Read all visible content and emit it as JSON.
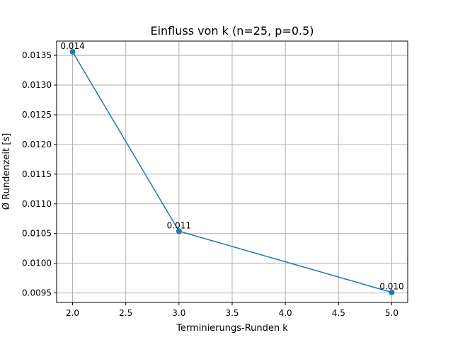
{
  "chart_data": {
    "type": "line",
    "title": "Einfluss von k (n=25, p=0.5)",
    "xlabel": "Terminierungs-Runden k",
    "ylabel": "Ø Rundenzeit [s]",
    "xlim": [
      1.85,
      5.15
    ],
    "ylim": [
      0.00934,
      0.01374
    ],
    "xticks": [
      2.0,
      2.5,
      3.0,
      3.5,
      4.0,
      4.5,
      5.0
    ],
    "xtick_labels": [
      "2.0",
      "2.5",
      "3.0",
      "3.5",
      "4.0",
      "4.5",
      "5.0"
    ],
    "yticks": [
      0.0095,
      0.01,
      0.0105,
      0.011,
      0.0115,
      0.012,
      0.0125,
      0.013,
      0.0135
    ],
    "ytick_labels": [
      "0.0095",
      "0.0100",
      "0.0105",
      "0.0110",
      "0.0115",
      "0.0120",
      "0.0125",
      "0.0130",
      "0.0135"
    ],
    "grid": true,
    "series": [
      {
        "color": "#1f77b4",
        "x": [
          2,
          3,
          5
        ],
        "y": [
          0.01356,
          0.01054,
          0.00951
        ],
        "labels": [
          "0.014",
          "0.011",
          "0.010"
        ]
      }
    ]
  }
}
